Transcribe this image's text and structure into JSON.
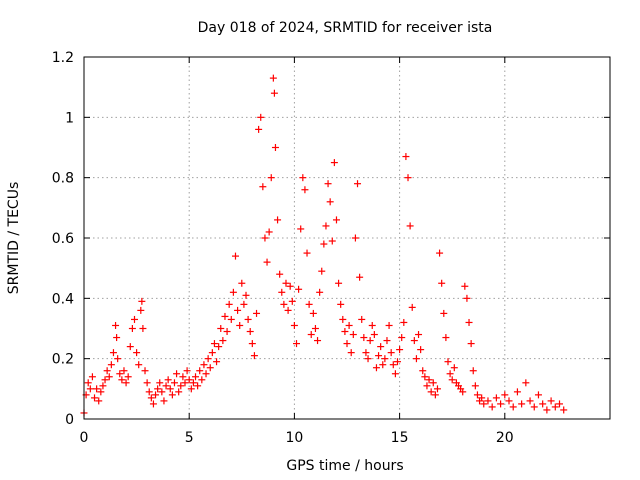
{
  "chart_data": {
    "type": "scatter",
    "title": "Day 018 of 2024, SRMTID for receiver ista",
    "xlabel": "GPS time / hours",
    "ylabel": "SRMTID / TECUs",
    "xlim": [
      0,
      25
    ],
    "ylim": [
      0,
      1.2
    ],
    "xticks": [
      0,
      5,
      10,
      15,
      20
    ],
    "yticks": [
      0,
      0.2,
      0.4,
      0.6,
      0.8,
      1,
      1.2
    ],
    "grid": true,
    "marker": "+",
    "series": [
      {
        "name": "SRMTID",
        "color": "#ff0000",
        "x": [
          0.0,
          0.1,
          0.2,
          0.3,
          0.4,
          0.5,
          0.6,
          0.7,
          0.8,
          0.9,
          1.0,
          1.1,
          1.2,
          1.3,
          1.4,
          1.5,
          1.55,
          1.6,
          1.7,
          1.8,
          1.9,
          2.0,
          2.1,
          2.2,
          2.3,
          2.4,
          2.5,
          2.6,
          2.7,
          2.75,
          2.8,
          2.9,
          3.0,
          3.1,
          3.2,
          3.3,
          3.4,
          3.5,
          3.6,
          3.7,
          3.8,
          3.9,
          4.0,
          4.1,
          4.2,
          4.3,
          4.4,
          4.5,
          4.6,
          4.7,
          4.8,
          4.9,
          5.0,
          5.1,
          5.2,
          5.3,
          5.4,
          5.5,
          5.6,
          5.7,
          5.8,
          5.9,
          6.0,
          6.1,
          6.2,
          6.3,
          6.4,
          6.5,
          6.6,
          6.7,
          6.8,
          6.9,
          7.0,
          7.1,
          7.2,
          7.3,
          7.4,
          7.5,
          7.6,
          7.7,
          7.8,
          7.9,
          8.0,
          8.1,
          8.2,
          8.3,
          8.4,
          8.5,
          8.6,
          8.7,
          8.8,
          8.9,
          9.0,
          9.05,
          9.1,
          9.2,
          9.3,
          9.4,
          9.5,
          9.6,
          9.7,
          9.8,
          9.9,
          10.0,
          10.1,
          10.2,
          10.3,
          10.4,
          10.5,
          10.6,
          10.7,
          10.8,
          10.9,
          11.0,
          11.1,
          11.2,
          11.3,
          11.4,
          11.5,
          11.6,
          11.7,
          11.8,
          11.9,
          12.0,
          12.1,
          12.2,
          12.3,
          12.4,
          12.5,
          12.6,
          12.7,
          12.8,
          12.9,
          13.0,
          13.1,
          13.2,
          13.3,
          13.4,
          13.5,
          13.6,
          13.7,
          13.8,
          13.9,
          14.0,
          14.1,
          14.2,
          14.3,
          14.4,
          14.5,
          14.6,
          14.7,
          14.8,
          14.9,
          15.0,
          15.1,
          15.2,
          15.3,
          15.4,
          15.5,
          15.6,
          15.7,
          15.8,
          15.9,
          16.0,
          16.1,
          16.2,
          16.3,
          16.4,
          16.5,
          16.6,
          16.7,
          16.8,
          16.9,
          17.0,
          17.1,
          17.2,
          17.3,
          17.4,
          17.5,
          17.6,
          17.7,
          17.8,
          17.9,
          18.0,
          18.1,
          18.2,
          18.3,
          18.4,
          18.5,
          18.6,
          18.7,
          18.8,
          18.9,
          19.0,
          19.2,
          19.4,
          19.6,
          19.8,
          20.0,
          20.2,
          20.4,
          20.6,
          20.8,
          21.0,
          21.2,
          21.4,
          21.6,
          21.8,
          22.0,
          22.2,
          22.4,
          22.6,
          22.8
        ],
        "y": [
          0.02,
          0.08,
          0.12,
          0.1,
          0.14,
          0.07,
          0.1,
          0.06,
          0.09,
          0.11,
          0.13,
          0.16,
          0.14,
          0.18,
          0.22,
          0.31,
          0.27,
          0.2,
          0.15,
          0.13,
          0.16,
          0.12,
          0.14,
          0.24,
          0.3,
          0.33,
          0.22,
          0.18,
          0.36,
          0.39,
          0.3,
          0.16,
          0.12,
          0.09,
          0.07,
          0.05,
          0.08,
          0.1,
          0.12,
          0.09,
          0.06,
          0.11,
          0.13,
          0.1,
          0.08,
          0.12,
          0.15,
          0.09,
          0.11,
          0.14,
          0.12,
          0.16,
          0.13,
          0.1,
          0.12,
          0.14,
          0.11,
          0.16,
          0.13,
          0.18,
          0.15,
          0.2,
          0.17,
          0.22,
          0.25,
          0.19,
          0.24,
          0.3,
          0.26,
          0.34,
          0.29,
          0.38,
          0.33,
          0.42,
          0.54,
          0.36,
          0.31,
          0.45,
          0.38,
          0.41,
          0.33,
          0.29,
          0.25,
          0.21,
          0.35,
          0.96,
          1.0,
          0.77,
          0.6,
          0.52,
          0.62,
          0.8,
          1.13,
          1.08,
          0.9,
          0.66,
          0.48,
          0.42,
          0.38,
          0.45,
          0.36,
          0.44,
          0.39,
          0.31,
          0.25,
          0.43,
          0.63,
          0.8,
          0.76,
          0.55,
          0.38,
          0.28,
          0.35,
          0.3,
          0.26,
          0.42,
          0.49,
          0.58,
          0.64,
          0.78,
          0.72,
          0.59,
          0.85,
          0.66,
          0.45,
          0.38,
          0.33,
          0.29,
          0.25,
          0.31,
          0.22,
          0.28,
          0.6,
          0.78,
          0.47,
          0.33,
          0.27,
          0.22,
          0.2,
          0.26,
          0.31,
          0.28,
          0.17,
          0.21,
          0.24,
          0.18,
          0.2,
          0.26,
          0.31,
          0.22,
          0.18,
          0.15,
          0.19,
          0.23,
          0.27,
          0.32,
          0.87,
          0.8,
          0.64,
          0.37,
          0.26,
          0.2,
          0.28,
          0.23,
          0.16,
          0.14,
          0.11,
          0.13,
          0.09,
          0.12,
          0.08,
          0.1,
          0.55,
          0.45,
          0.35,
          0.27,
          0.19,
          0.15,
          0.13,
          0.17,
          0.12,
          0.11,
          0.1,
          0.09,
          0.44,
          0.4,
          0.32,
          0.25,
          0.16,
          0.11,
          0.08,
          0.06,
          0.07,
          0.05,
          0.06,
          0.04,
          0.07,
          0.05,
          0.08,
          0.06,
          0.04,
          0.09,
          0.05,
          0.12,
          0.06,
          0.04,
          0.08,
          0.05,
          0.03,
          0.06,
          0.04,
          0.05,
          0.03
        ]
      }
    ]
  }
}
